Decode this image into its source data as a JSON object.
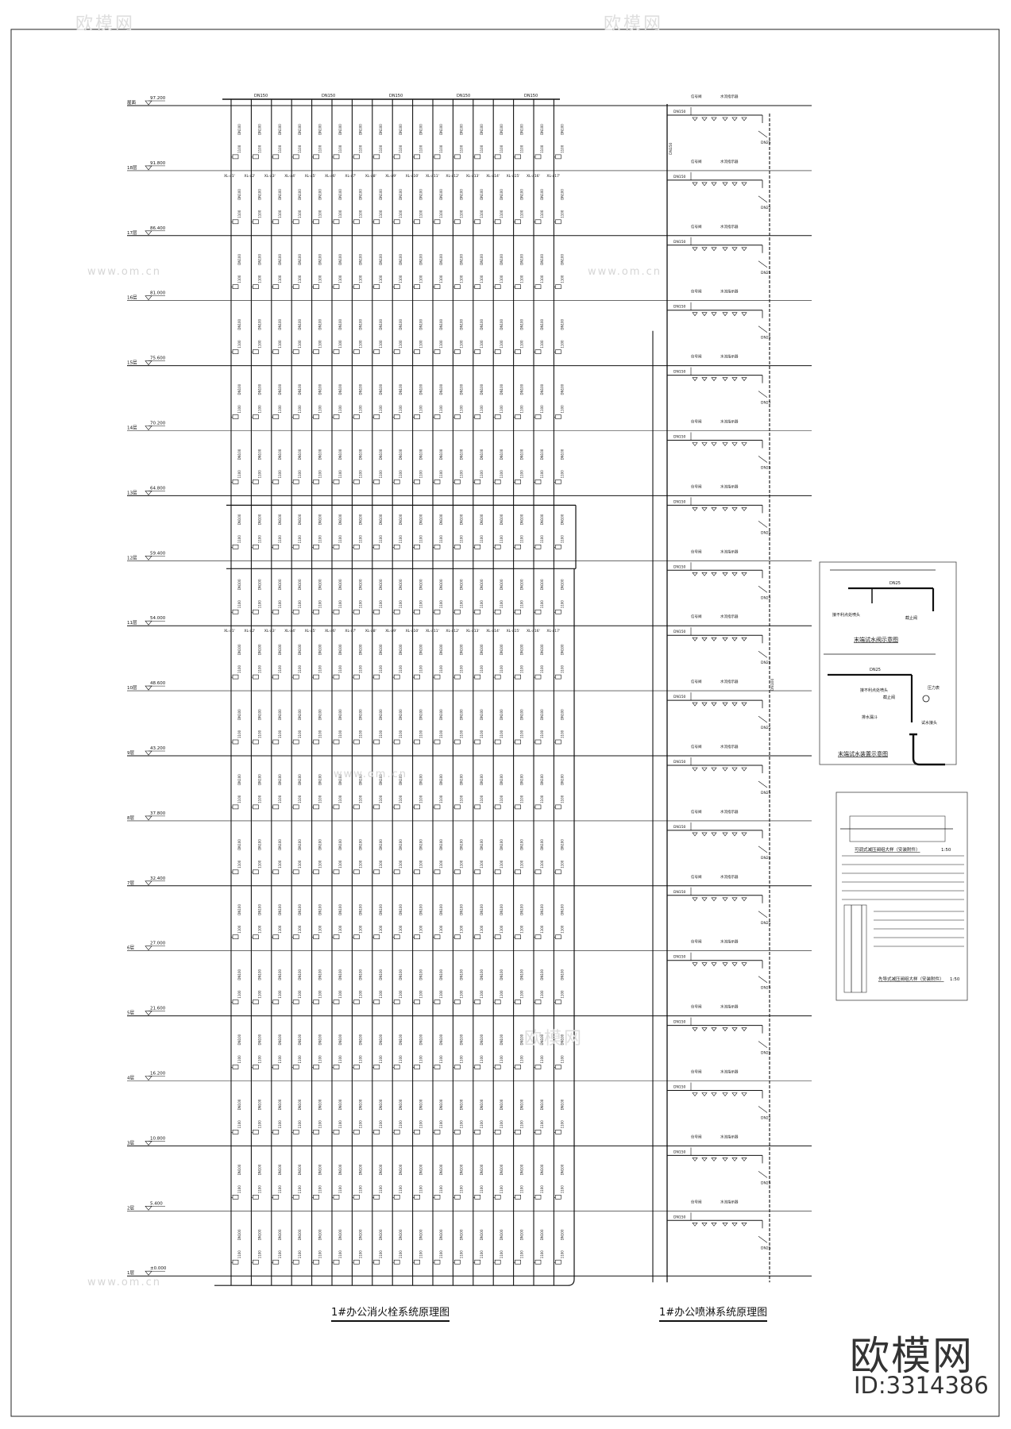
{
  "floors": [
    {
      "label": "屋面",
      "elevation": "97.200"
    },
    {
      "label": "18层",
      "elevation": "91.800"
    },
    {
      "label": "17层",
      "elevation": "86.400"
    },
    {
      "label": "16层",
      "elevation": "81.000"
    },
    {
      "label": "15层",
      "elevation": "75.600"
    },
    {
      "label": "14层",
      "elevation": "70.200"
    },
    {
      "label": "13层",
      "elevation": "64.800"
    },
    {
      "label": "12层",
      "elevation": "59.400"
    },
    {
      "label": "11层",
      "elevation": "54.000"
    },
    {
      "label": "10层",
      "elevation": "48.600"
    },
    {
      "label": "9层",
      "elevation": "43.200"
    },
    {
      "label": "8层",
      "elevation": "37.800"
    },
    {
      "label": "7层",
      "elevation": "32.400"
    },
    {
      "label": "6层",
      "elevation": "27.000"
    },
    {
      "label": "5层",
      "elevation": "21.600"
    },
    {
      "label": "4层",
      "elevation": "16.200"
    },
    {
      "label": "3层",
      "elevation": "10.800"
    },
    {
      "label": "2层",
      "elevation": "5.400"
    },
    {
      "label": "1层",
      "elevation": "±0.000"
    }
  ],
  "hydrant_system": {
    "title": "1#办公消火栓系统原理图",
    "roof_main_labels": [
      "DN150",
      "DN150",
      "DN150",
      "DN150",
      "DN150"
    ],
    "riser_pipe_label": "DN100",
    "risers": [
      "XL-a1'",
      "XL-a2'",
      "XL-a3'",
      "XL-a4'",
      "XL-a5'",
      "XL-a6'",
      "XL-a7'",
      "XL-a8'",
      "XL-a9'",
      "XL-a10'",
      "XL-a11'",
      "XL-a12'",
      "XL-a13'",
      "XL-a14'",
      "XL-a15'",
      "XL-a16'",
      "XL-a17'"
    ],
    "hydrant_height": "1100"
  },
  "sprinkler_system": {
    "title": "1#办公喷淋系统原理图",
    "branch_pipe": "DN150",
    "signal_valve": "信号阀",
    "flow_indicator": "水流指示器",
    "test_pipe": "DN25",
    "drain_riser": "DN100",
    "main_riser": "DN150"
  },
  "details": {
    "end_test_valve": {
      "title": "末端试水阀示意图",
      "pipe": "DN25",
      "labels": [
        "接不利点处喷头",
        "截止阀"
      ]
    },
    "end_test_device": {
      "title": "末端试水装置示意图",
      "pipe": "DN25",
      "labels": [
        "接不利点处喷头",
        "截止阀",
        "压力表",
        "试水接头",
        "排水漏斗"
      ]
    },
    "prv_adjustable": {
      "title": "可调式减压阀组大样（安装附件）",
      "scale": "1:50"
    },
    "prv_pilot": {
      "title": "先导式减压阀组大样（安装附件）",
      "scale": "1:50"
    }
  },
  "watermark": {
    "brand": "欧模网",
    "id": "ID:3314386",
    "site": "www.om.cn"
  }
}
